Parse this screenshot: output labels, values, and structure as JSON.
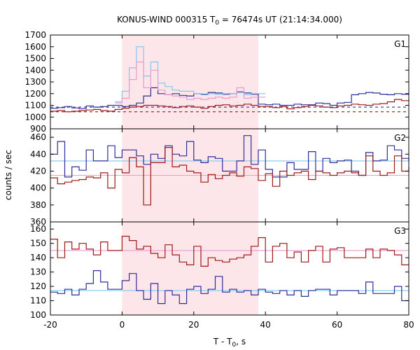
{
  "chart_data": {
    "type": "line",
    "title": "KONUS-WIND 000315 T0 = 76474s UT (21:14:34.000)",
    "title_parts": {
      "prefix": "KONUS-WIND 000315 T",
      "sub": "0",
      "suffix": " = 76474s UT (21:14:34.000)"
    },
    "xlabel_parts": {
      "prefix": "T - T",
      "sub": "0",
      "suffix": ", s"
    },
    "ylabel": "counts / sec",
    "xlim": [
      -20,
      80
    ],
    "xticks": [
      "-20",
      "0",
      "20",
      "40",
      "60",
      "80"
    ],
    "highlight_interval": [
      0,
      38
    ],
    "colors": {
      "blue": "#2e2e9a",
      "red": "#a01818",
      "light_blue": "#7ec8ee",
      "pink": "#e79bd0",
      "shade": "#fde6ea"
    },
    "panels": [
      {
        "label": "G1",
        "ylim": [
          900,
          1700
        ],
        "yticks": [
          "900",
          "1000",
          "1100",
          "1200",
          "1300",
          "1400",
          "1500",
          "1600",
          "1700"
        ],
        "series": [
          {
            "color_key": "blue",
            "x": [
              -20,
              -18,
              -16,
              -14,
              -12,
              -10,
              -8,
              -6,
              -4,
              -2,
              0,
              2,
              4,
              6,
              8,
              10,
              12,
              14,
              16,
              18,
              20,
              22,
              24,
              26,
              28,
              30,
              32,
              34,
              36,
              38,
              40,
              42,
              44,
              46,
              48,
              50,
              52,
              54,
              56,
              58,
              60,
              62,
              64,
              66,
              68,
              70,
              72,
              74,
              76,
              78,
              80
            ],
            "values": [
              1075,
              1080,
              1090,
              1078,
              1072,
              1095,
              1085,
              1090,
              1100,
              1100,
              1090,
              1100,
              1120,
              1180,
              1250,
              1200,
              1190,
              1200,
              1185,
              1180,
              1200,
              1195,
              1210,
              1205,
              1195,
              1200,
              1215,
              1205,
              1195,
              1110,
              1105,
              1110,
              1100,
              1100,
              1110,
              1105,
              1105,
              1120,
              1115,
              1100,
              1120,
              1125,
              1190,
              1200,
              1210,
              1205,
              1195,
              1190,
              1200,
              1195,
              1200
            ]
          },
          {
            "color_key": "red",
            "x": [
              -20,
              -18,
              -16,
              -14,
              -12,
              -10,
              -8,
              -6,
              -4,
              -2,
              0,
              2,
              4,
              6,
              8,
              10,
              12,
              14,
              16,
              18,
              20,
              22,
              24,
              26,
              28,
              30,
              32,
              34,
              36,
              38,
              40,
              42,
              44,
              46,
              48,
              50,
              52,
              54,
              56,
              58,
              60,
              62,
              64,
              66,
              68,
              70,
              72,
              74,
              76,
              78,
              80
            ],
            "values": [
              1050,
              1055,
              1045,
              1050,
              1055,
              1060,
              1065,
              1055,
              1050,
              1065,
              1075,
              1085,
              1090,
              1100,
              1100,
              1095,
              1090,
              1080,
              1090,
              1095,
              1085,
              1075,
              1090,
              1100,
              1105,
              1095,
              1100,
              1110,
              1100,
              1090,
              1090,
              1080,
              1090,
              1070,
              1080,
              1090,
              1100,
              1095,
              1085,
              1080,
              1095,
              1100,
              1110,
              1105,
              1100,
              1110,
              1115,
              1130,
              1150,
              1140,
              1150
            ]
          },
          {
            "color_key": "light_blue",
            "x": [
              -2,
              0,
              2,
              4,
              6,
              8,
              10,
              12,
              14,
              16,
              18,
              20,
              22,
              24,
              26,
              28,
              30,
              32,
              34,
              36,
              38
            ],
            "values": [
              1130,
              1220,
              1420,
              1600,
              1350,
              1470,
              1290,
              1260,
              1230,
              1220,
              1220,
              1200,
              1190,
              1200,
              1195,
              1200,
              1200,
              1210,
              1190,
              1200,
              1200
            ]
          },
          {
            "color_key": "pink",
            "x": [
              -2,
              0,
              2,
              4,
              6,
              8,
              10,
              12,
              14,
              16,
              18,
              20,
              22,
              24,
              26,
              28,
              30,
              32,
              34,
              36,
              38
            ],
            "values": [
              1120,
              1160,
              1320,
              1470,
              1250,
              1400,
              1230,
              1190,
              1180,
              1170,
              1150,
              1160,
              1150,
              1160,
              1170,
              1160,
              1170,
              1250,
              1160,
              1170,
              1170
            ]
          }
        ],
        "background_lines": [
          {
            "color_key": "blue",
            "value": 1085,
            "dashed": true
          },
          {
            "color_key": "red",
            "value": 1045,
            "dashed": true
          }
        ]
      },
      {
        "label": "G2",
        "ylim": [
          360,
          470
        ],
        "yticks": [
          "360",
          "380",
          "400",
          "420",
          "440",
          "460"
        ],
        "series": [
          {
            "color_key": "blue",
            "x": [
              -20,
              -18,
              -16,
              -14,
              -12,
              -10,
              -8,
              -6,
              -4,
              -2,
              0,
              2,
              4,
              6,
              8,
              10,
              12,
              14,
              16,
              18,
              20,
              22,
              24,
              26,
              28,
              30,
              32,
              34,
              36,
              38,
              40,
              42,
              44,
              46,
              48,
              50,
              52,
              54,
              56,
              58,
              60,
              62,
              64,
              66,
              68,
              70,
              72,
              74,
              76,
              78,
              80
            ],
            "values": [
              440,
              455,
              413,
              425,
              421,
              445,
              432,
              432,
              450,
              436,
              445,
              445,
              438,
              428,
              440,
              435,
              450,
              440,
              438,
              455,
              433,
              430,
              437,
              435,
              420,
              420,
              432,
              462,
              428,
              445,
              422,
              413,
              413,
              430,
              422,
              422,
              443,
              420,
              435,
              430,
              432,
              433,
              420,
              415,
              442,
              432,
              433,
              450,
              445,
              435,
              432
            ]
          },
          {
            "color_key": "red",
            "x": [
              -20,
              -18,
              -16,
              -14,
              -12,
              -10,
              -8,
              -6,
              -4,
              -2,
              0,
              2,
              4,
              6,
              8,
              10,
              12,
              14,
              16,
              18,
              20,
              22,
              24,
              26,
              28,
              30,
              32,
              34,
              36,
              38,
              40,
              42,
              44,
              46,
              48,
              50,
              52,
              54,
              56,
              58,
              60,
              62,
              64,
              66,
              68,
              70,
              72,
              74,
              76,
              78,
              80
            ],
            "values": [
              412,
              405,
              407,
              409,
              410,
              413,
              412,
              418,
              400,
              422,
              418,
              436,
              425,
              380,
              430,
              430,
              448,
              425,
              427,
              420,
              418,
              407,
              416,
              411,
              415,
              418,
              414,
              425,
              423,
              409,
              417,
              402,
              420,
              415,
              418,
              420,
              410,
              420,
              418,
              415,
              418,
              420,
              418,
              415,
              438,
              420,
              415,
              418,
              438,
              420,
              425
            ]
          }
        ],
        "background_lines": [
          {
            "color_key": "light_blue",
            "value": 432,
            "dashed": false
          },
          {
            "color_key": "pink",
            "value": 415,
            "dashed": false
          }
        ]
      },
      {
        "label": "G3",
        "ylim": [
          100,
          165
        ],
        "yticks": [
          "100",
          "110",
          "120",
          "130",
          "140",
          "150",
          "160"
        ],
        "series": [
          {
            "color_key": "red",
            "x": [
              -20,
              -18,
              -16,
              -14,
              -12,
              -10,
              -8,
              -6,
              -4,
              -2,
              0,
              2,
              4,
              6,
              8,
              10,
              12,
              14,
              16,
              18,
              20,
              22,
              24,
              26,
              28,
              30,
              32,
              34,
              36,
              38,
              40,
              42,
              44,
              46,
              48,
              50,
              52,
              54,
              56,
              58,
              60,
              62,
              64,
              66,
              68,
              70,
              72,
              74,
              76,
              78,
              80
            ],
            "values": [
              153,
              140,
              151,
              146,
              150,
              146,
              142,
              151,
              145,
              145,
              155,
              152,
              146,
              148,
              143,
              140,
              149,
              142,
              137,
              135,
              148,
              134,
              140,
              138,
              137,
              139,
              140,
              142,
              148,
              154,
              137,
              148,
              150,
              140,
              144,
              137,
              145,
              148,
              137,
              146,
              147,
              140,
              140,
              140,
              146,
              140,
              146,
              145,
              142,
              135,
              135
            ]
          },
          {
            "color_key": "blue",
            "x": [
              -20,
              -18,
              -16,
              -14,
              -12,
              -10,
              -8,
              -6,
              -4,
              -2,
              0,
              2,
              4,
              6,
              8,
              10,
              12,
              14,
              16,
              18,
              20,
              22,
              24,
              26,
              28,
              30,
              32,
              34,
              36,
              38,
              40,
              42,
              44,
              46,
              48,
              50,
              52,
              54,
              56,
              58,
              60,
              62,
              64,
              66,
              68,
              70,
              72,
              74,
              76,
              78,
              80
            ],
            "values": [
              116,
              115,
              118,
              114,
              118,
              122,
              131,
              123,
              118,
              118,
              124,
              129,
              117,
              111,
              122,
              108,
              117,
              114,
              108,
              118,
              120,
              115,
              118,
              127,
              116,
              118,
              116,
              117,
              114,
              118,
              116,
              115,
              117,
              114,
              117,
              113,
              117,
              118,
              118,
              114,
              117,
              117,
              117,
              115,
              123,
              115,
              115,
              115,
              120,
              110,
              110
            ]
          }
        ],
        "background_lines": [
          {
            "color_key": "pink",
            "value": 145,
            "dashed": false
          },
          {
            "color_key": "light_blue",
            "value": 117,
            "dashed": false
          }
        ]
      }
    ]
  }
}
